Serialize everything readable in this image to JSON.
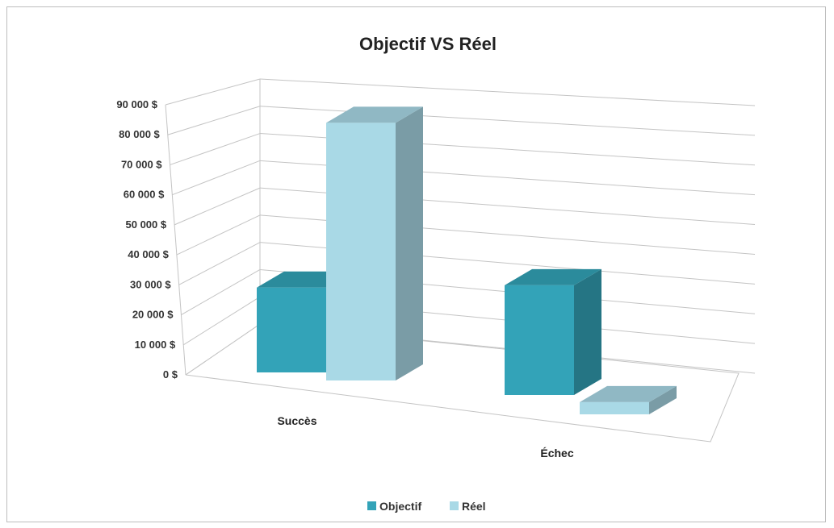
{
  "chart_data": {
    "type": "bar",
    "title": "Objectif VS Réel",
    "categories": [
      "Succès",
      "Échec"
    ],
    "series": [
      {
        "name": "Objectif",
        "values": [
          28000,
          36000
        ]
      },
      {
        "name": "Réel",
        "values": [
          85000,
          4000
        ]
      }
    ],
    "ylim": [
      0,
      90000
    ],
    "yticks": [
      "0 $",
      "10 000 $",
      "20 000 $",
      "30 000 $",
      "40 000 $",
      "50 000 $",
      "60 000 $",
      "70 000 $",
      "80 000 $",
      "90 000 $"
    ],
    "grid": true,
    "legend_position": "bottom",
    "three_d": true
  },
  "colors": {
    "objectif": "#33a3b8",
    "reel": "#a9d9e6",
    "gridline": "#c4c4c4"
  }
}
